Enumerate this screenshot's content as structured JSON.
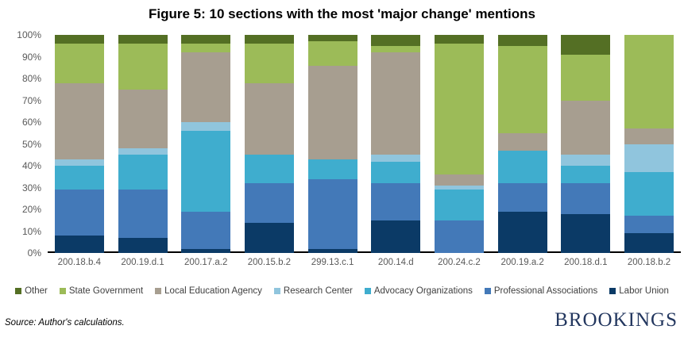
{
  "title": "Figure 5: 10 sections with the most 'major change' mentions",
  "source_note": "Source: Author's calculations.",
  "logo_text": "BROOKINGS",
  "colors": {
    "axis_line": "#000000",
    "tick_label": "#595959",
    "logo_navy": "#23375f",
    "background": "#ffffff"
  },
  "chart_data": {
    "type": "bar",
    "variant": "stacked-100-percent",
    "title": "Figure 5: 10 sections with the most 'major change' mentions",
    "xlabel": "",
    "ylabel": "",
    "ylim": [
      0,
      100
    ],
    "grid": false,
    "legend_position": "bottom",
    "y_ticks_top_to_bottom": [
      "100%",
      "90%",
      "80%",
      "70%",
      "60%",
      "50%",
      "40%",
      "30%",
      "20%",
      "10%",
      "0%"
    ],
    "categories": [
      "200.18.b.4",
      "200.19.d.1",
      "200.17.a.2",
      "200.15.b.2",
      "299.13.c.1",
      "200.14.d",
      "200.24.c.2",
      "200.19.a.2",
      "200.18.d.1",
      "200.18.b.2"
    ],
    "stack_order_note": "series listed bottom-to-top of each bar; legend shows reverse order",
    "series": [
      {
        "name": "Labor Union",
        "color": "#0b3a66",
        "values": [
          8,
          7,
          2,
          14,
          2,
          15,
          0,
          19,
          18,
          9
        ]
      },
      {
        "name": "Professional Associations",
        "color": "#4379b8",
        "values": [
          21,
          22,
          17,
          18,
          32,
          17,
          15,
          13,
          14,
          8
        ]
      },
      {
        "name": "Advocacy Organizations",
        "color": "#3fadce",
        "values": [
          11,
          16,
          37,
          13,
          9,
          10,
          14,
          15,
          8,
          20
        ]
      },
      {
        "name": "Research Center",
        "color": "#90c5dd",
        "values": [
          3,
          3,
          4,
          0,
          0,
          3,
          2,
          0,
          5,
          13
        ]
      },
      {
        "name": "Local Education Agency",
        "color": "#a79e90",
        "values": [
          35,
          27,
          32,
          33,
          43,
          47,
          5,
          8,
          25,
          7
        ]
      },
      {
        "name": "State Government",
        "color": "#9cbb58",
        "values": [
          18,
          21,
          4,
          18,
          11,
          3,
          60,
          40,
          21,
          43
        ]
      },
      {
        "name": "Other",
        "color": "#546f24",
        "values": [
          4,
          4,
          4,
          4,
          3,
          5,
          4,
          5,
          9,
          0
        ]
      }
    ]
  }
}
